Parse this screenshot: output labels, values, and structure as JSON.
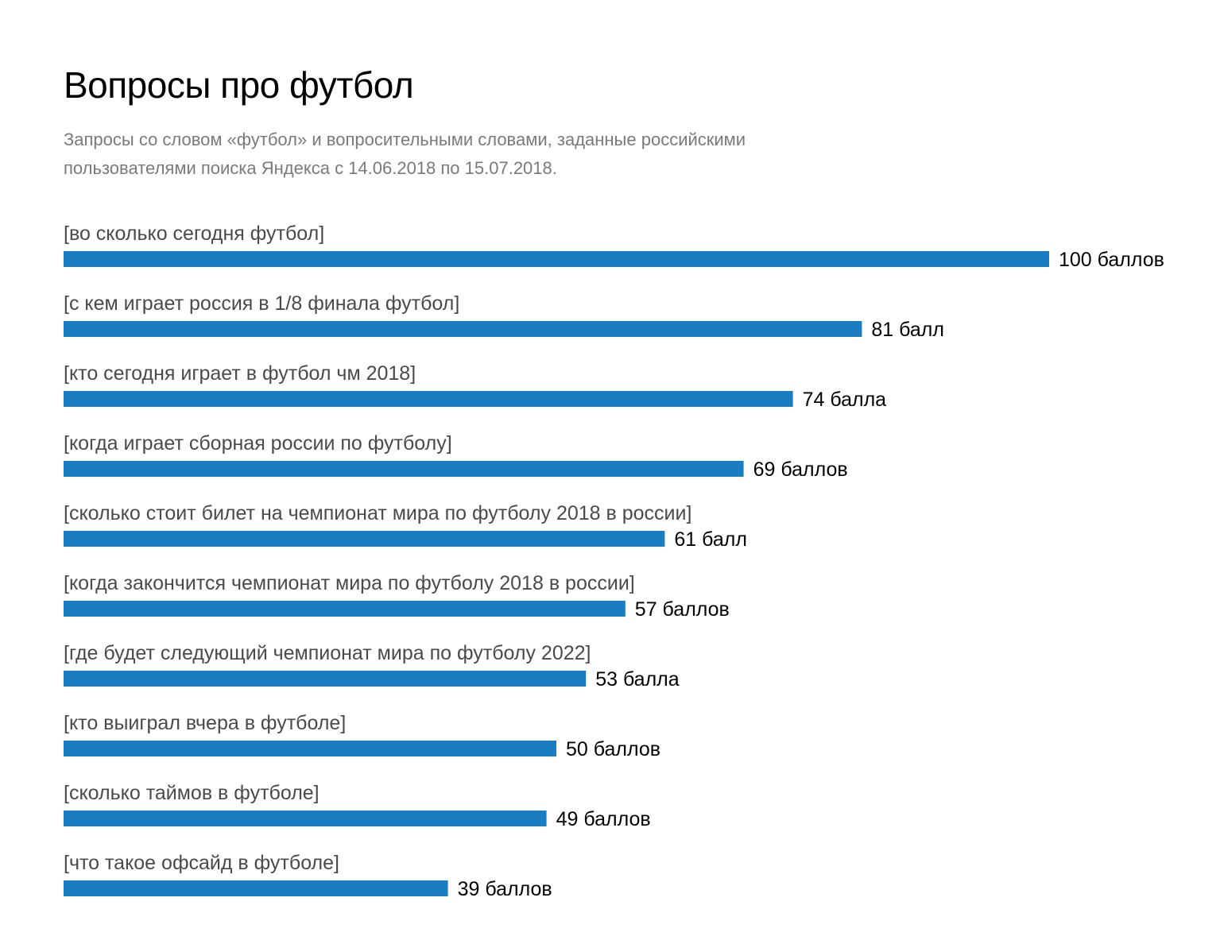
{
  "header": {
    "title": "Вопросы про футбол",
    "subtitle": "Запросы со словом «футбол» и вопросительными словами, заданные российскими пользователями поиска Яндекса с 14.06.2018 по 15.07.2018."
  },
  "chart_data": {
    "type": "bar",
    "orientation": "horizontal",
    "title": "Вопросы про футбол",
    "subtitle": "Запросы со словом «футбол» и вопросительными словами, заданные российскими пользователями поиска Яндекса с 14.06.2018 по 15.07.2018.",
    "xlabel": "",
    "ylabel": "",
    "xlim": [
      0,
      100
    ],
    "grid": false,
    "legend": "none",
    "bar_color": "#1a7cc1",
    "categories": [
      "[во сколько сегодня футбол]",
      "[с кем играет россия в 1/8 финала футбол]",
      "[кто сегодня играет в футбол чм 2018]",
      "[когда играет сборная россии по футболу]",
      "[сколько стоит билет на чемпионат мира по футболу 2018 в россии]",
      "[когда закончится чемпионат мира по футболу 2018 в россии]",
      "[где будет следующий чемпионат мира по футболу 2022]",
      "[кто выиграл вчера в футболе]",
      "[сколько таймов в футболе]",
      "[что такое офсайд в футболе]"
    ],
    "values": [
      100,
      81,
      74,
      69,
      61,
      57,
      53,
      50,
      49,
      39
    ],
    "value_labels": [
      "100 баллов",
      "81 балл",
      "74 балла",
      "69 баллов",
      "61 балл",
      "57 баллов",
      "53 балла",
      "50 баллов",
      "49 баллов",
      "39 баллов"
    ]
  }
}
